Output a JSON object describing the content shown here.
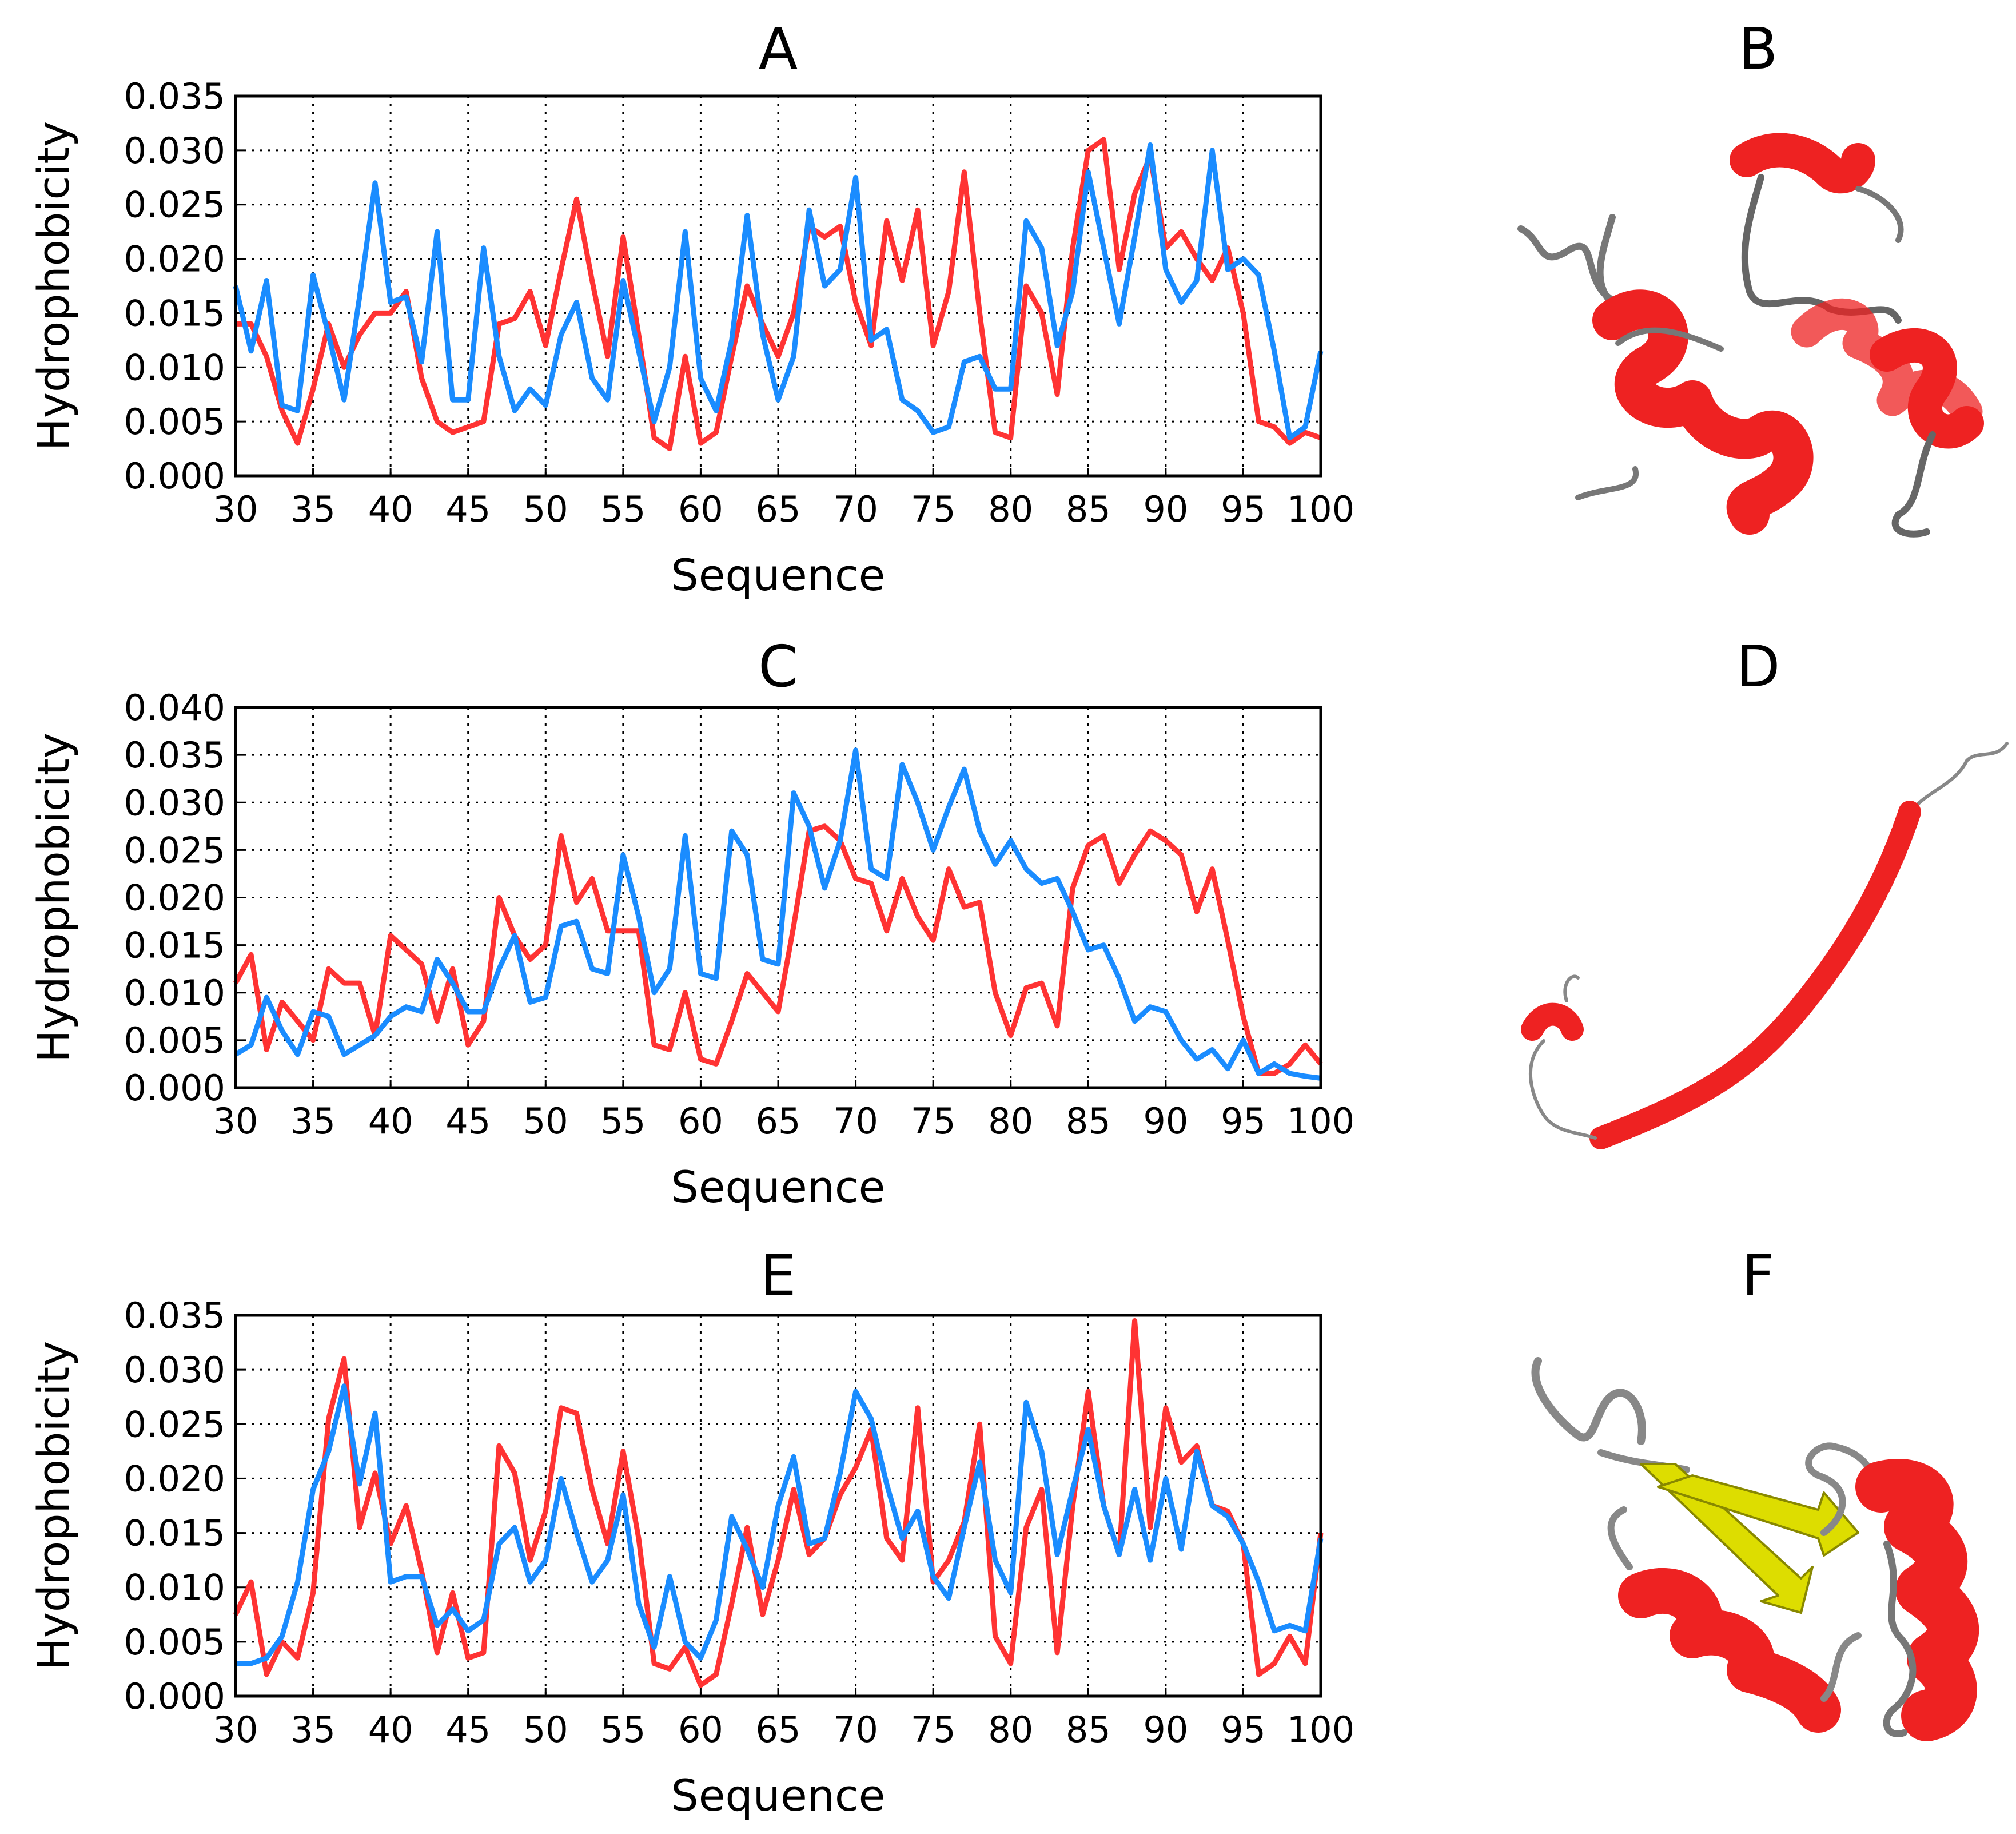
{
  "colors": {
    "red": "#ff3333",
    "blue": "#1a8cff",
    "helix": "#ee2222",
    "coil": "#777777",
    "strand": "#dddd00"
  },
  "structures": [
    {
      "label": "B"
    },
    {
      "label": "D"
    },
    {
      "label": "F"
    }
  ],
  "chart_data": [
    {
      "type": "line",
      "title": "A",
      "xlabel": "Sequence",
      "ylabel": "Hydrophobicity",
      "xlim": [
        30,
        100
      ],
      "ylim": [
        0,
        0.035
      ],
      "xticks": [
        "30",
        "35",
        "40",
        "45",
        "50",
        "55",
        "60",
        "65",
        "70",
        "75",
        "80",
        "85",
        "90",
        "95",
        "100"
      ],
      "yticks": [
        "0.000",
        "0.005",
        "0.010",
        "0.015",
        "0.020",
        "0.025",
        "0.030",
        "0.035"
      ],
      "grid": true,
      "x": [
        30,
        31,
        32,
        33,
        34,
        35,
        36,
        37,
        38,
        39,
        40,
        41,
        42,
        43,
        44,
        45,
        46,
        47,
        48,
        49,
        50,
        51,
        52,
        53,
        54,
        55,
        56,
        57,
        58,
        59,
        60,
        61,
        62,
        63,
        64,
        65,
        66,
        67,
        68,
        69,
        70,
        71,
        72,
        73,
        74,
        75,
        76,
        77,
        78,
        79,
        80,
        81,
        82,
        83,
        84,
        85,
        86,
        87,
        88,
        89,
        90,
        91,
        92,
        93,
        94,
        95,
        96,
        97,
        98,
        99,
        100
      ],
      "series": [
        {
          "name": "red",
          "color": "#ff3333",
          "values": [
            0.014,
            0.014,
            0.011,
            0.006,
            0.003,
            0.008,
            0.014,
            0.01,
            0.013,
            0.015,
            0.015,
            0.017,
            0.009,
            0.005,
            0.004,
            0.0045,
            0.005,
            0.014,
            0.0145,
            0.017,
            0.012,
            0.019,
            0.0255,
            0.018,
            0.011,
            0.022,
            0.013,
            0.0035,
            0.0025,
            0.011,
            0.003,
            0.004,
            0.011,
            0.0175,
            0.014,
            0.011,
            0.015,
            0.023,
            0.022,
            0.023,
            0.016,
            0.012,
            0.0235,
            0.018,
            0.0245,
            0.012,
            0.017,
            0.028,
            0.015,
            0.004,
            0.0035,
            0.0175,
            0.015,
            0.0075,
            0.021,
            0.03,
            0.031,
            0.019,
            0.026,
            0.0295,
            0.021,
            0.0225,
            0.02,
            0.018,
            0.021,
            0.015,
            0.005,
            0.0045,
            0.003,
            0.004,
            0.0035
          ]
        },
        {
          "name": "blue",
          "color": "#1a8cff",
          "values": [
            0.0175,
            0.0115,
            0.018,
            0.0065,
            0.006,
            0.0185,
            0.013,
            0.007,
            0.0165,
            0.027,
            0.016,
            0.0165,
            0.0105,
            0.0225,
            0.007,
            0.007,
            0.021,
            0.011,
            0.006,
            0.008,
            0.0065,
            0.013,
            0.016,
            0.009,
            0.007,
            0.018,
            0.0115,
            0.005,
            0.01,
            0.0225,
            0.009,
            0.006,
            0.0125,
            0.024,
            0.013,
            0.007,
            0.011,
            0.0245,
            0.0175,
            0.019,
            0.0275,
            0.0125,
            0.0135,
            0.007,
            0.006,
            0.004,
            0.0045,
            0.0105,
            0.011,
            0.008,
            0.008,
            0.0235,
            0.021,
            0.012,
            0.017,
            0.028,
            0.021,
            0.014,
            0.022,
            0.0305,
            0.019,
            0.016,
            0.018,
            0.03,
            0.019,
            0.02,
            0.0185,
            0.0115,
            0.0035,
            0.0045,
            0.0115
          ]
        }
      ]
    },
    {
      "type": "line",
      "title": "C",
      "xlabel": "Sequence",
      "ylabel": "Hydrophobicity",
      "xlim": [
        30,
        100
      ],
      "ylim": [
        0,
        0.04
      ],
      "xticks": [
        "30",
        "35",
        "40",
        "45",
        "50",
        "55",
        "60",
        "65",
        "70",
        "75",
        "80",
        "85",
        "90",
        "95",
        "100"
      ],
      "yticks": [
        "0.000",
        "0.005",
        "0.010",
        "0.015",
        "0.020",
        "0.025",
        "0.030",
        "0.035",
        "0.040"
      ],
      "grid": true,
      "x": [
        30,
        31,
        32,
        33,
        34,
        35,
        36,
        37,
        38,
        39,
        40,
        41,
        42,
        43,
        44,
        45,
        46,
        47,
        48,
        49,
        50,
        51,
        52,
        53,
        54,
        55,
        56,
        57,
        58,
        59,
        60,
        61,
        62,
        63,
        64,
        65,
        66,
        67,
        68,
        69,
        70,
        71,
        72,
        73,
        74,
        75,
        76,
        77,
        78,
        79,
        80,
        81,
        82,
        83,
        84,
        85,
        86,
        87,
        88,
        89,
        90,
        91,
        92,
        93,
        94,
        95,
        96,
        97,
        98,
        99,
        100
      ],
      "series": [
        {
          "name": "red",
          "color": "#ff3333",
          "values": [
            0.011,
            0.014,
            0.004,
            0.009,
            0.007,
            0.005,
            0.0125,
            0.011,
            0.011,
            0.0055,
            0.016,
            0.0145,
            0.013,
            0.007,
            0.0125,
            0.0045,
            0.007,
            0.02,
            0.016,
            0.0135,
            0.015,
            0.0265,
            0.0195,
            0.022,
            0.0165,
            0.0165,
            0.0165,
            0.0045,
            0.004,
            0.01,
            0.003,
            0.0025,
            0.007,
            0.012,
            0.01,
            0.008,
            0.017,
            0.027,
            0.0275,
            0.026,
            0.022,
            0.0215,
            0.0165,
            0.022,
            0.018,
            0.0155,
            0.023,
            0.019,
            0.0195,
            0.01,
            0.0055,
            0.0105,
            0.011,
            0.0065,
            0.021,
            0.0255,
            0.0265,
            0.0215,
            0.0245,
            0.027,
            0.026,
            0.0245,
            0.0185,
            0.023,
            0.0155,
            0.0075,
            0.0015,
            0.0015,
            0.0025,
            0.0045,
            0.0025
          ]
        },
        {
          "name": "blue",
          "color": "#1a8cff",
          "values": [
            0.0035,
            0.0045,
            0.0095,
            0.006,
            0.0035,
            0.008,
            0.0075,
            0.0035,
            0.0045,
            0.0055,
            0.0075,
            0.0085,
            0.008,
            0.0135,
            0.011,
            0.008,
            0.008,
            0.0125,
            0.016,
            0.009,
            0.0095,
            0.017,
            0.0175,
            0.0125,
            0.012,
            0.0245,
            0.018,
            0.01,
            0.0125,
            0.0265,
            0.012,
            0.0115,
            0.027,
            0.0245,
            0.0135,
            0.013,
            0.031,
            0.0275,
            0.021,
            0.026,
            0.0355,
            0.023,
            0.022,
            0.034,
            0.03,
            0.025,
            0.0295,
            0.0335,
            0.027,
            0.0235,
            0.026,
            0.023,
            0.0215,
            0.022,
            0.0185,
            0.0145,
            0.015,
            0.0115,
            0.007,
            0.0085,
            0.008,
            0.005,
            0.003,
            0.004,
            0.002,
            0.005,
            0.0015,
            0.0025,
            0.0015,
            0.0012,
            0.001
          ]
        }
      ]
    },
    {
      "type": "line",
      "title": "E",
      "xlabel": "Sequence",
      "ylabel": "Hydrophobicity",
      "xlim": [
        30,
        100
      ],
      "ylim": [
        0,
        0.035
      ],
      "xticks": [
        "30",
        "35",
        "40",
        "45",
        "50",
        "55",
        "60",
        "65",
        "70",
        "75",
        "80",
        "85",
        "90",
        "95",
        "100"
      ],
      "yticks": [
        "0.000",
        "0.005",
        "0.010",
        "0.015",
        "0.020",
        "0.025",
        "0.030",
        "0.035"
      ],
      "grid": true,
      "x": [
        30,
        31,
        32,
        33,
        34,
        35,
        36,
        37,
        38,
        39,
        40,
        41,
        42,
        43,
        44,
        45,
        46,
        47,
        48,
        49,
        50,
        51,
        52,
        53,
        54,
        55,
        56,
        57,
        58,
        59,
        60,
        61,
        62,
        63,
        64,
        65,
        66,
        67,
        68,
        69,
        70,
        71,
        72,
        73,
        74,
        75,
        76,
        77,
        78,
        79,
        80,
        81,
        82,
        83,
        84,
        85,
        86,
        87,
        88,
        89,
        90,
        91,
        92,
        93,
        94,
        95,
        96,
        97,
        98,
        99,
        100
      ],
      "series": [
        {
          "name": "red",
          "color": "#ff3333",
          "values": [
            0.0075,
            0.0105,
            0.002,
            0.005,
            0.0035,
            0.0095,
            0.0255,
            0.031,
            0.0155,
            0.0205,
            0.014,
            0.0175,
            0.0115,
            0.004,
            0.0095,
            0.0035,
            0.004,
            0.023,
            0.0205,
            0.0125,
            0.017,
            0.0265,
            0.026,
            0.019,
            0.014,
            0.0225,
            0.0145,
            0.003,
            0.0025,
            0.0045,
            0.001,
            0.002,
            0.0085,
            0.0155,
            0.0075,
            0.0125,
            0.019,
            0.013,
            0.0145,
            0.0185,
            0.021,
            0.0245,
            0.0145,
            0.0125,
            0.0265,
            0.0105,
            0.0125,
            0.016,
            0.025,
            0.0055,
            0.003,
            0.0155,
            0.019,
            0.004,
            0.0175,
            0.028,
            0.0175,
            0.013,
            0.0345,
            0.0155,
            0.0265,
            0.0215,
            0.023,
            0.0175,
            0.017,
            0.014,
            0.002,
            0.003,
            0.0055,
            0.003,
            0.015
          ]
        },
        {
          "name": "blue",
          "color": "#1a8cff",
          "values": [
            0.003,
            0.003,
            0.0035,
            0.0055,
            0.0105,
            0.019,
            0.0225,
            0.0285,
            0.0195,
            0.026,
            0.0105,
            0.011,
            0.011,
            0.0065,
            0.008,
            0.006,
            0.007,
            0.014,
            0.0155,
            0.0105,
            0.0125,
            0.02,
            0.015,
            0.0105,
            0.0125,
            0.0185,
            0.0085,
            0.0045,
            0.011,
            0.005,
            0.0035,
            0.007,
            0.0165,
            0.0135,
            0.01,
            0.0175,
            0.022,
            0.014,
            0.0145,
            0.0205,
            0.028,
            0.0255,
            0.0195,
            0.0145,
            0.017,
            0.011,
            0.009,
            0.0155,
            0.0215,
            0.0125,
            0.0095,
            0.027,
            0.0225,
            0.013,
            0.019,
            0.0245,
            0.0175,
            0.013,
            0.019,
            0.0125,
            0.02,
            0.0135,
            0.0225,
            0.0175,
            0.0165,
            0.014,
            0.0105,
            0.006,
            0.0065,
            0.006,
            0.0145
          ]
        }
      ]
    }
  ]
}
